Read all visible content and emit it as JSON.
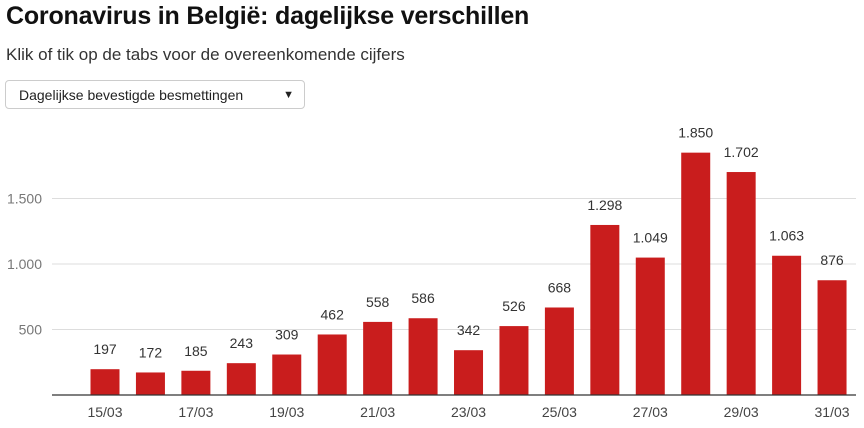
{
  "header": {
    "title": "Coronavirus in België: dagelijkse verschillen",
    "subtitle": "Klik of tik op de tabs voor de overeenkomende cijfers"
  },
  "dropdown": {
    "selected": "Dagelijkse bevestigde besmettingen",
    "icon": "caret-down-icon"
  },
  "colors": {
    "bar": "#c91d1d",
    "grid": "#dddddd",
    "axis": "#333333"
  },
  "chart_data": {
    "type": "bar",
    "title": "Dagelijkse bevestigde besmettingen",
    "categories": [
      "15/03",
      "16/03",
      "17/03",
      "18/03",
      "19/03",
      "20/03",
      "21/03",
      "22/03",
      "23/03",
      "24/03",
      "25/03",
      "26/03",
      "27/03",
      "28/03",
      "29/03",
      "30/03",
      "31/03"
    ],
    "values": [
      197,
      172,
      185,
      243,
      309,
      462,
      558,
      586,
      342,
      526,
      668,
      1298,
      1049,
      1850,
      1702,
      1063,
      876
    ],
    "value_labels": [
      "197",
      "172",
      "185",
      "243",
      "309",
      "462",
      "558",
      "586",
      "342",
      "526",
      "668",
      "1.298",
      "1.049",
      "1.850",
      "1.702",
      "1.063",
      "876"
    ],
    "x_tick_labels": [
      "15/03",
      "17/03",
      "19/03",
      "21/03",
      "23/03",
      "25/03",
      "27/03",
      "29/03",
      "31/03"
    ],
    "y_ticks": [
      500,
      1000,
      1500
    ],
    "y_tick_labels": [
      "500",
      "1.000",
      "1.500"
    ],
    "ylim": [
      0,
      2000
    ],
    "grid": true,
    "xlabel": "",
    "ylabel": ""
  }
}
